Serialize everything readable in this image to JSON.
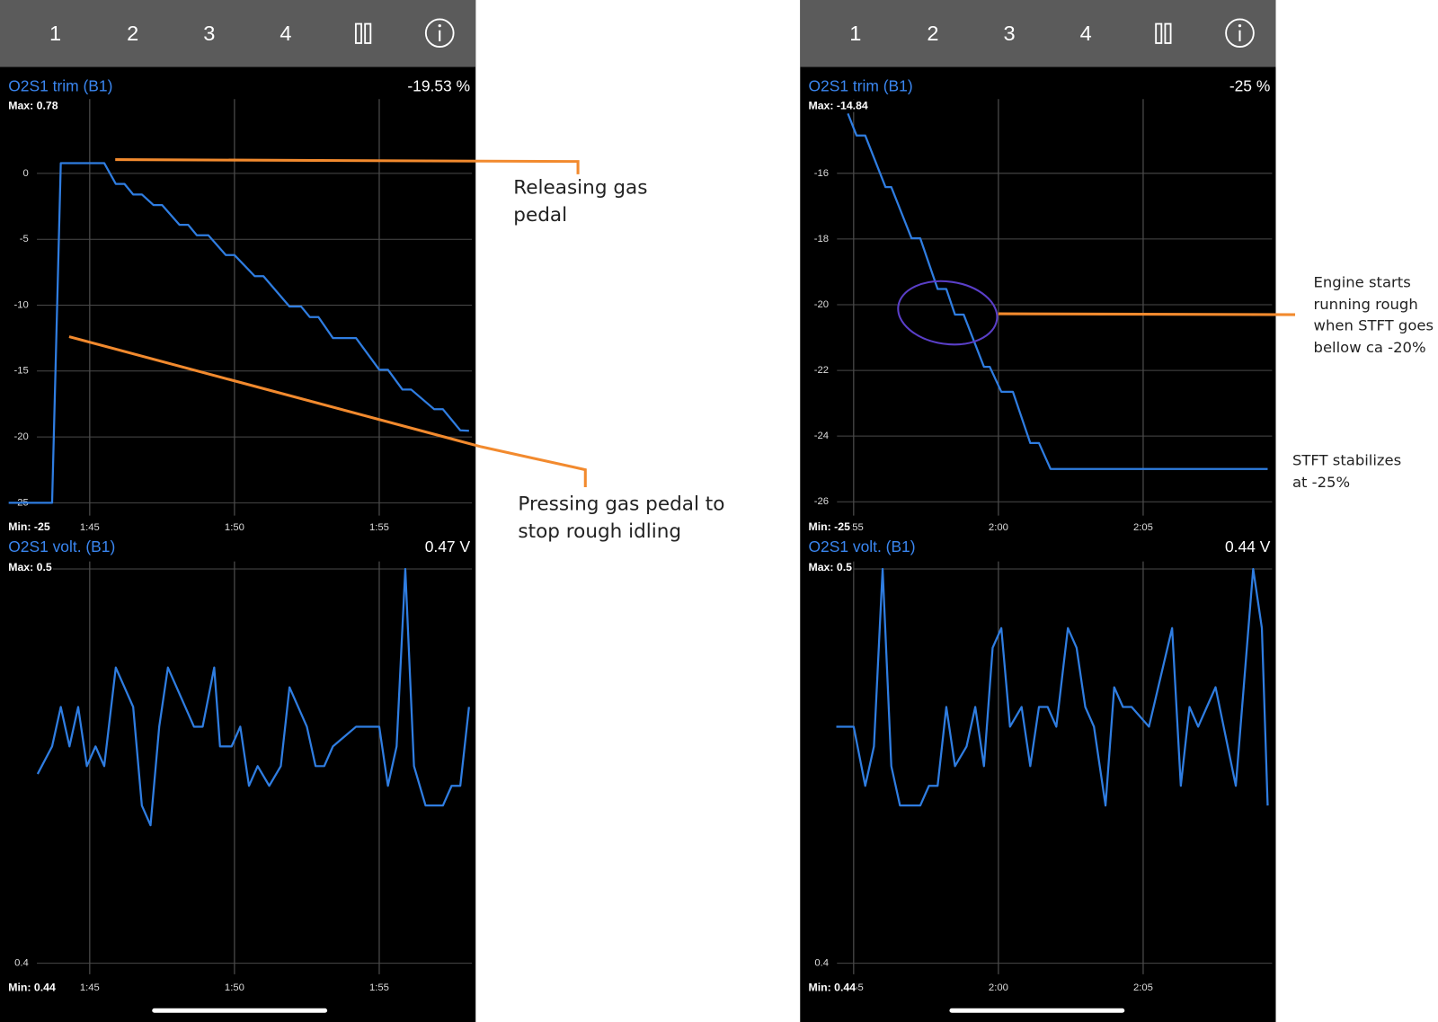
{
  "screens": [
    {
      "toolbar": [
        "1",
        "2",
        "3",
        "4"
      ],
      "charts": [
        {
          "type": "line",
          "title": "O2S1 trim (B1)",
          "reading": "-19.53 %",
          "max_label": "Max: 0.78",
          "min_label": "Min: -25",
          "color": "#2f7de1",
          "grid": true,
          "x": [
            102.2,
            103.7,
            104.0,
            105.5,
            105.9,
            106.2,
            106.5,
            106.8,
            107.2,
            107.5,
            108.1,
            108.4,
            108.7,
            109.1,
            109.7,
            110.0,
            110.7,
            111.0,
            111.9,
            112.3,
            112.6,
            112.9,
            113.4,
            114.2,
            115.0,
            115.3,
            115.8,
            116.1,
            116.9,
            117.2,
            117.8,
            118.1
          ],
          "values": [
            -25,
            -25,
            0.78,
            0.78,
            -0.8,
            -0.8,
            -1.6,
            -1.6,
            -2.4,
            -2.4,
            -3.9,
            -3.9,
            -4.7,
            -4.7,
            -6.2,
            -6.2,
            -7.8,
            -7.8,
            -10.1,
            -10.1,
            -10.9,
            -10.9,
            -12.5,
            -12.5,
            -14.9,
            -14.9,
            -16.4,
            -16.4,
            -17.9,
            -17.9,
            -19.5,
            -19.53
          ],
          "xlim": [
            101.9,
            118.33
          ],
          "ylim": [
            -25.97,
            5.64
          ],
          "xticks": [
            {
              "value": 105,
              "label": "1:45"
            },
            {
              "value": 110,
              "label": "1:50"
            },
            {
              "value": 115,
              "label": "1:55"
            }
          ],
          "yticks": [
            0,
            -5,
            -10,
            -15,
            -20,
            -25
          ]
        },
        {
          "type": "line",
          "title": "O2S1 volt. (B1)",
          "reading": "0.47 V",
          "max_label": "Max: 0.5",
          "min_label": "Min: 0.44",
          "color": "#2f7de1",
          "grid": true,
          "x": [
            103.2,
            103.7,
            104.0,
            104.3,
            104.6,
            104.9,
            105.2,
            105.5,
            105.9,
            106.5,
            106.8,
            107.1,
            107.4,
            107.7,
            108.6,
            108.9,
            109.3,
            109.5,
            109.9,
            110.2,
            110.5,
            110.8,
            111.2,
            111.6,
            111.9,
            112.5,
            112.8,
            113.1,
            113.4,
            114.2,
            115.0,
            115.3,
            115.6,
            115.9,
            116.2,
            116.6,
            117.2,
            117.5,
            117.8,
            118.1
          ],
          "values": [
            0.448,
            0.455,
            0.465,
            0.455,
            0.465,
            0.45,
            0.455,
            0.45,
            0.475,
            0.465,
            0.44,
            0.435,
            0.46,
            0.475,
            0.46,
            0.46,
            0.475,
            0.455,
            0.455,
            0.46,
            0.445,
            0.45,
            0.445,
            0.45,
            0.47,
            0.46,
            0.45,
            0.45,
            0.455,
            0.46,
            0.46,
            0.445,
            0.455,
            0.5,
            0.45,
            0.44,
            0.44,
            0.445,
            0.445,
            0.465
          ],
          "xlim": [
            101.9,
            118.33
          ],
          "ylim": [
            0.3972,
            0.5019
          ],
          "xticks": [
            {
              "value": 105,
              "label": "1:45"
            },
            {
              "value": 110,
              "label": "1:50"
            },
            {
              "value": 115,
              "label": "1:55"
            }
          ],
          "yticks": [
            0.4,
            0.5
          ]
        }
      ]
    },
    {
      "toolbar": [
        "1",
        "2",
        "3",
        "4"
      ],
      "charts": [
        {
          "type": "line",
          "title": "O2S1 trim (B1)",
          "reading": "-25 %",
          "max_label": "Max: -14.84",
          "min_label": "Min: -25",
          "color": "#2f7de1",
          "grid": true,
          "x": [
            114.8,
            115.1,
            115.4,
            116.1,
            116.3,
            117.0,
            117.3,
            117.9,
            118.2,
            118.5,
            118.8,
            119.5,
            119.7,
            120.1,
            120.5,
            121.1,
            121.4,
            121.8,
            129.3
          ],
          "values": [
            -14.18,
            -14.85,
            -14.85,
            -16.42,
            -16.42,
            -17.98,
            -17.98,
            -19.52,
            -19.52,
            -20.3,
            -20.3,
            -21.89,
            -21.89,
            -22.65,
            -22.65,
            -24.21,
            -24.21,
            -25,
            -25
          ],
          "xlim": [
            113.15,
            129.58
          ],
          "ylim": [
            -26.42,
            -13.74
          ],
          "xticks": [
            {
              "value": 115,
              "label": "1:55"
            },
            {
              "value": 120,
              "label": "2:00"
            },
            {
              "value": 125,
              "label": "2:05"
            }
          ],
          "yticks": [
            -16,
            -18,
            -20,
            -22,
            -24,
            -26
          ]
        },
        {
          "type": "line",
          "title": "O2S1 volt. (B1)",
          "reading": "0.44 V",
          "max_label": "Max: 0.5",
          "min_label": "Min: 0.44",
          "color": "#2f7de1",
          "grid": true,
          "x": [
            114.4,
            115.0,
            115.4,
            115.7,
            116.0,
            116.3,
            116.6,
            117.3,
            117.6,
            117.9,
            118.2,
            118.5,
            118.9,
            119.2,
            119.5,
            119.8,
            120.1,
            120.4,
            120.8,
            121.1,
            121.4,
            121.7,
            122.0,
            122.4,
            122.7,
            123.0,
            123.3,
            123.7,
            124.0,
            124.3,
            124.6,
            125.2,
            126.0,
            126.3,
            126.6,
            126.9,
            127.2,
            127.5,
            128.2,
            128.8,
            129.1,
            129.3
          ],
          "values": [
            0.46,
            0.46,
            0.445,
            0.455,
            0.5,
            0.45,
            0.44,
            0.44,
            0.445,
            0.445,
            0.465,
            0.45,
            0.455,
            0.465,
            0.45,
            0.48,
            0.485,
            0.46,
            0.465,
            0.45,
            0.465,
            0.465,
            0.46,
            0.485,
            0.48,
            0.465,
            0.46,
            0.44,
            0.47,
            0.465,
            0.465,
            0.46,
            0.485,
            0.445,
            0.465,
            0.46,
            0.465,
            0.47,
            0.445,
            0.5,
            0.485,
            0.44
          ],
          "xlim": [
            113.15,
            129.58
          ],
          "ylim": [
            0.3972,
            0.5019
          ],
          "xticks": [
            {
              "value": 115,
              "label": "1:55"
            },
            {
              "value": 120,
              "label": "2:00"
            },
            {
              "value": 125,
              "label": "2:05"
            }
          ],
          "yticks": [
            0.4,
            0.5
          ]
        }
      ]
    }
  ],
  "annotations": [
    "Releasing gas pedal",
    "Pressing gas pedal to stop rough idling",
    "Engine starts running rough when STFT goes bellow ca -20%",
    "STFT stabilizes at -25%"
  ]
}
